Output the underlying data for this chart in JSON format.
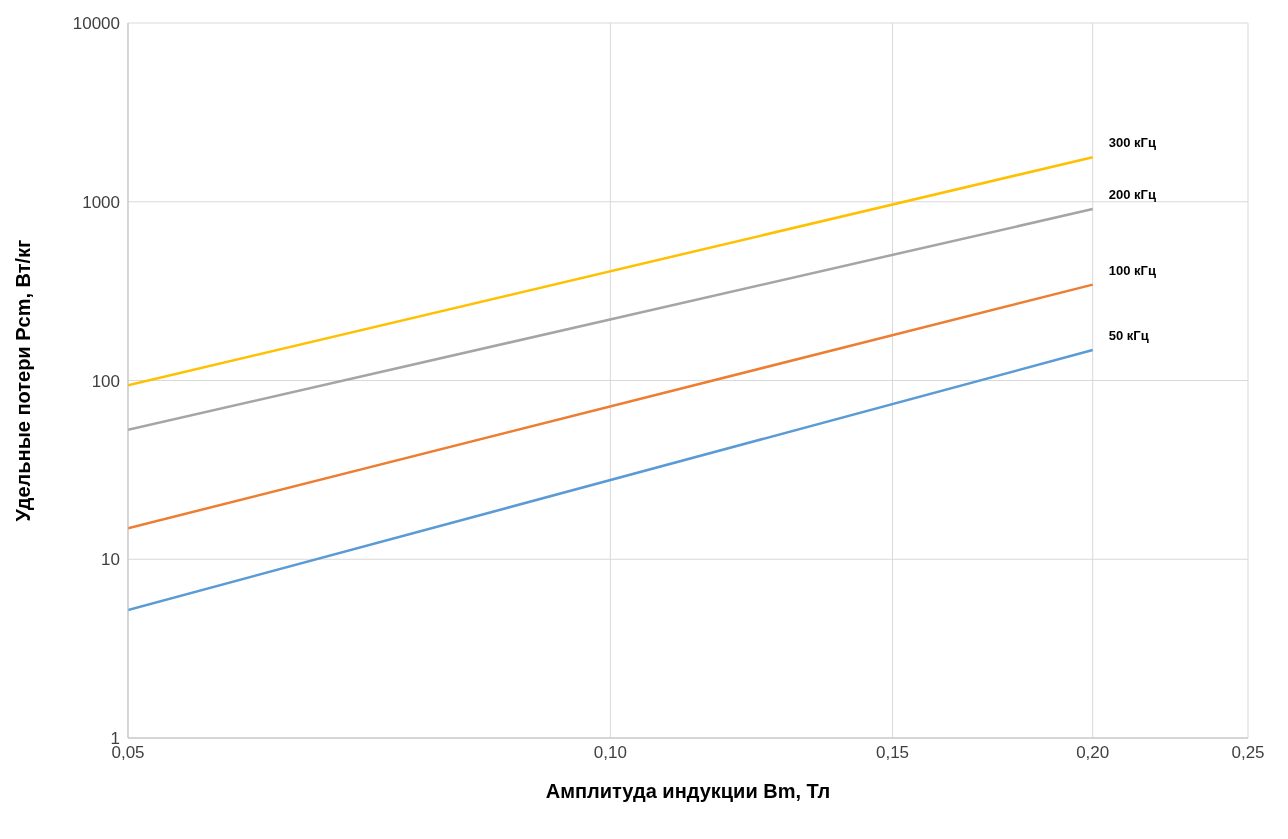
{
  "chart_data": {
    "type": "line",
    "xlabel": "Амплитуда индукции  Bm, Тл",
    "ylabel": "Удельные потери Pcm, Вт/кг",
    "log": "xy",
    "grid": true,
    "xlim": [
      0.05,
      0.25
    ],
    "xticks": [
      {
        "value": 0.05,
        "label": "0,05"
      },
      {
        "value": 0.1,
        "label": "0,10"
      },
      {
        "value": 0.15,
        "label": "0,15"
      },
      {
        "value": 0.2,
        "label": "0,20"
      },
      {
        "value": 0.25,
        "label": "0,25"
      }
    ],
    "ylim": [
      1,
      10000
    ],
    "yticks": [
      1,
      10,
      100,
      1000,
      10000
    ],
    "x": [
      0.05,
      0.2
    ],
    "series": [
      {
        "name": "50 кГц",
        "color": "#5b9bd5",
        "values": [
          5.2,
          148
        ]
      },
      {
        "name": "100 кГц",
        "color": "#ed7d31",
        "values": [
          14.9,
          344
        ]
      },
      {
        "name": "200 кГц",
        "color": "#a5a5a5",
        "values": [
          53,
          910
        ]
      },
      {
        "name": "300 кГц",
        "color": "#ffc000",
        "values": [
          94,
          1775
        ]
      }
    ]
  }
}
